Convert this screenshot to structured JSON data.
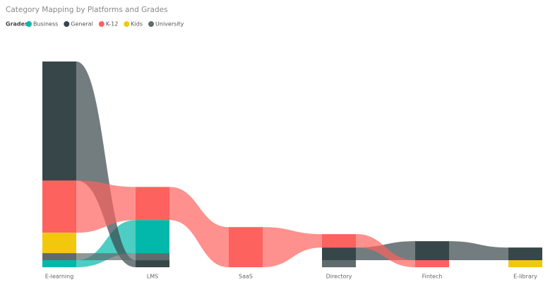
{
  "chart_data": {
    "type": "ribbon",
    "title": "Category Mapping by Platforms and Grades",
    "legend_title": "Grades",
    "categories": [
      "E-learning",
      "LMS",
      "SaaS",
      "Directory",
      "Fintech",
      "E-library"
    ],
    "series": [
      {
        "name": "Business",
        "color": "#01b8aa",
        "values": [
          1.0,
          4.7,
          null,
          null,
          null,
          null
        ]
      },
      {
        "name": "General",
        "color": "#374649",
        "values": [
          16.9,
          1.0,
          null,
          1.8,
          2.7,
          1.8
        ]
      },
      {
        "name": "K-12",
        "color": "#fd625e",
        "values": [
          7.4,
          4.7,
          5.7,
          1.9,
          1.0,
          null
        ]
      },
      {
        "name": "Kids",
        "color": "#f2c80f",
        "values": [
          2.9,
          null,
          null,
          null,
          null,
          1.0
        ]
      },
      {
        "name": "University",
        "color": "#5f6b6d",
        "values": [
          1.0,
          1.0,
          null,
          1.0,
          null,
          null
        ]
      }
    ]
  }
}
